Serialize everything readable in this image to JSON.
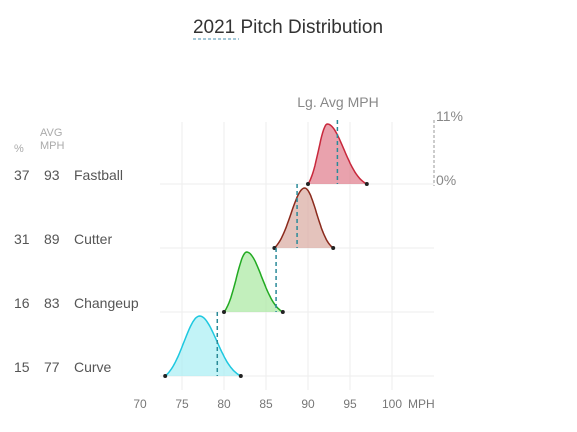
{
  "chart_data": {
    "type": "ridgeline",
    "title": "2021 Pitch Distribution",
    "xlabel": "MPH",
    "xlim": [
      70,
      100
    ],
    "xticks": [
      70,
      75,
      80,
      85,
      90,
      95,
      100
    ],
    "column_headers": {
      "pct": "%",
      "avg": "AVG\nMPH"
    },
    "league_avg_label": "Lg. Avg MPH",
    "density_scale": {
      "max": "11%",
      "min": "0%"
    },
    "series": [
      {
        "name": "Fastball",
        "pct": 37,
        "avg_mph": 93,
        "league_avg_mph": 93.5,
        "min": 90,
        "max": 97,
        "peak": 92.3,
        "color": "#e07a8a",
        "stroke": "#c8283c"
      },
      {
        "name": "Cutter",
        "pct": 31,
        "avg_mph": 89,
        "league_avg_mph": 88.7,
        "min": 86,
        "max": 93,
        "peak": 89.6,
        "color": "#d8aaa0",
        "stroke": "#8b2a1c"
      },
      {
        "name": "Changeup",
        "pct": 16,
        "avg_mph": 83,
        "league_avg_mph": 86.2,
        "min": 80,
        "max": 87,
        "peak": 82.7,
        "color": "#a8e8a0",
        "stroke": "#22aa22"
      },
      {
        "name": "Curve",
        "pct": 15,
        "avg_mph": 77,
        "league_avg_mph": 79.2,
        "min": 73,
        "max": 82,
        "peak": 77.1,
        "color": "#a8eef4",
        "stroke": "#1ec8e0"
      }
    ]
  }
}
